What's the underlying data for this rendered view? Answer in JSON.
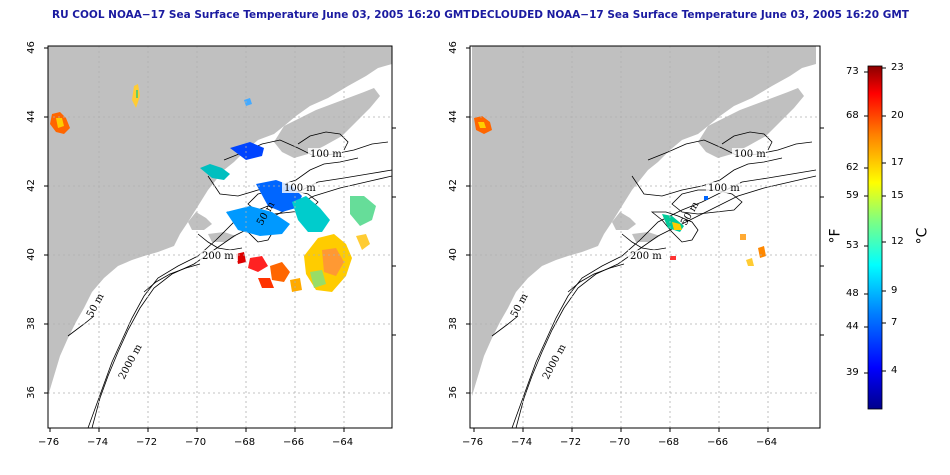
{
  "maps": [
    {
      "title": "RU COOL NOAA−17 Sea Surface Temperature June 03, 2005 16:20 GMT",
      "contour_labels": [
        "100 m",
        "100 m",
        "50 m",
        "200 m",
        "50 m",
        "2000 m"
      ]
    },
    {
      "title": "DECLOUDED NOAA−17 Sea Surface Temperature June 03, 2005 16:20 GMT",
      "contour_labels": [
        "100 m",
        "100 m",
        "50 m",
        "200 m",
        "50 m",
        "2000 m"
      ]
    }
  ],
  "axes": {
    "y_ticks": [
      "46",
      "44",
      "42",
      "40",
      "38",
      "36"
    ],
    "x_ticks": [
      "−76",
      "−74",
      "−72",
      "−70",
      "−68",
      "−66",
      "−64"
    ]
  },
  "colorbar": {
    "fahrenheit_ticks": [
      "73",
      "68",
      "62",
      "59",
      "53",
      "48",
      "44",
      "39"
    ],
    "celsius_ticks": [
      "23",
      "20",
      "17",
      "15",
      "12",
      "9",
      "7",
      "4"
    ],
    "fahrenheit_unit": "°F",
    "celsius_unit": "°C",
    "colors": [
      "#00008b",
      "#0000ff",
      "#0080ff",
      "#00ffff",
      "#80ff80",
      "#ffff00",
      "#ff8000",
      "#ff0000",
      "#8b0000"
    ]
  },
  "colors": {
    "land": "#c0c0c0",
    "title": "#1a1aa0"
  }
}
